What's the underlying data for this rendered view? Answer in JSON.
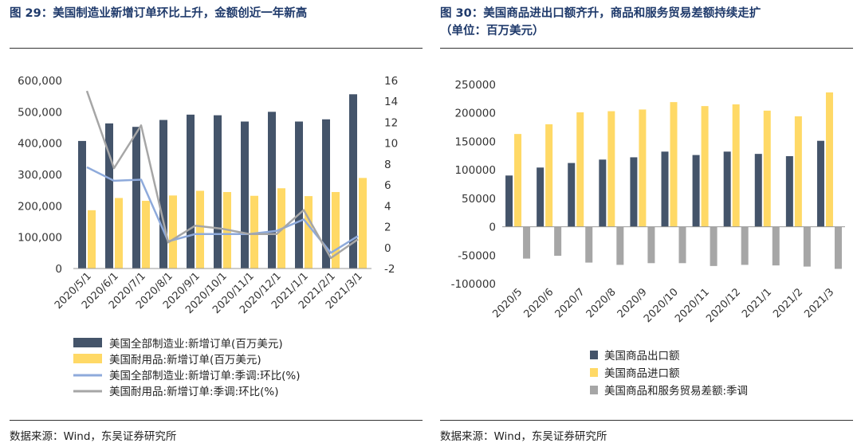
{
  "charts": [
    {
      "figure_title": "图 29：美国制造业新增订单环比上升，金额创近一年新高",
      "source": "数据来源：Wind，东吴证券研究所",
      "chart_data": {
        "type": "bar",
        "categories": [
          "2020/5/1",
          "2020/6/1",
          "2020/7/1",
          "2020/8/1",
          "2020/9/1",
          "2020/10/1",
          "2020/11/1",
          "2020/12/1",
          "2021/1/1",
          "2021/2/1",
          "2021/3/1"
        ],
        "y_left": {
          "lim": [
            0,
            600000
          ],
          "ticks": [
            "0",
            "100,000",
            "200,000",
            "300,000",
            "400,000",
            "500,000",
            "600,000"
          ]
        },
        "y_right": {
          "lim": [
            -2,
            16
          ],
          "ticks": [
            "-2",
            "0",
            "2",
            "4",
            "6",
            "8",
            "10",
            "12",
            "14",
            "16"
          ]
        },
        "grid": false,
        "legend_position": "bottom",
        "series": [
          {
            "name": "美国全部制造业:新增订单(百万美元)",
            "kind": "bar",
            "axis": "left",
            "color": "#44546a",
            "values": [
              407000,
              463000,
              452000,
              474000,
              491000,
              489000,
              469000,
              500000,
              469000,
              476000,
              556000
            ]
          },
          {
            "name": "美国耐用品:新增订单(百万美元)",
            "kind": "bar",
            "axis": "left",
            "color": "#ffd966",
            "values": [
              186000,
              225000,
              216000,
              233000,
              248000,
              244000,
              232000,
              256000,
              231000,
              244000,
              289000
            ]
          },
          {
            "name": "美国全部制造业:新增订单:季调:环比(%)",
            "kind": "line",
            "axis": "right",
            "color": "#8eaadb",
            "values": [
              7.7,
              6.4,
              6.5,
              0.6,
              1.3,
              1.3,
              1.3,
              1.6,
              2.7,
              -0.5,
              1.1
            ]
          },
          {
            "name": "美国耐用品:新增订单:季调:环比(%)",
            "kind": "line",
            "axis": "right",
            "color": "#a6a6a6",
            "values": [
              15.0,
              7.6,
              11.7,
              0.5,
              2.1,
              1.8,
              1.3,
              1.3,
              3.6,
              -1.0,
              0.8
            ]
          }
        ]
      }
    },
    {
      "figure_title": "图 30：美国商品进出口额齐升，商品和服务贸易差额持续走扩",
      "figure_title_sub": "（单位：百万美元）",
      "source": "数据来源：Wind，东吴证券研究所",
      "chart_data": {
        "type": "bar",
        "categories": [
          "2020/5",
          "2020/6",
          "2020/7",
          "2020/8",
          "2020/9",
          "2020/10",
          "2020/11",
          "2020/12",
          "2021/1",
          "2021/2",
          "2021/3"
        ],
        "y_left": {
          "lim": [
            -100000,
            250000
          ],
          "ticks": [
            "-100000",
            "-50000",
            "0",
            "50000",
            "100000",
            "150000",
            "200000",
            "250000"
          ]
        },
        "grid": false,
        "legend_position": "bottom",
        "series": [
          {
            "name": "美国商品出口额",
            "kind": "bar",
            "axis": "left",
            "color": "#44546a",
            "values": [
              90000,
              104000,
              112000,
              118000,
              122000,
              132000,
              126000,
              132000,
              128000,
              124000,
              151000
            ]
          },
          {
            "name": "美国商品进口额",
            "kind": "bar",
            "axis": "left",
            "color": "#ffd966",
            "values": [
              163000,
              180000,
              201000,
              203000,
              206000,
              219000,
              212000,
              215000,
              204000,
              194000,
              236000
            ]
          },
          {
            "name": "美国商品和服务贸易差额:季调",
            "kind": "bar",
            "axis": "left",
            "color": "#a6a6a6",
            "values": [
              -56000,
              -51000,
              -63000,
              -67000,
              -64000,
              -64000,
              -69000,
              -67000,
              -68000,
              -70000,
              -74000
            ]
          }
        ]
      }
    }
  ]
}
